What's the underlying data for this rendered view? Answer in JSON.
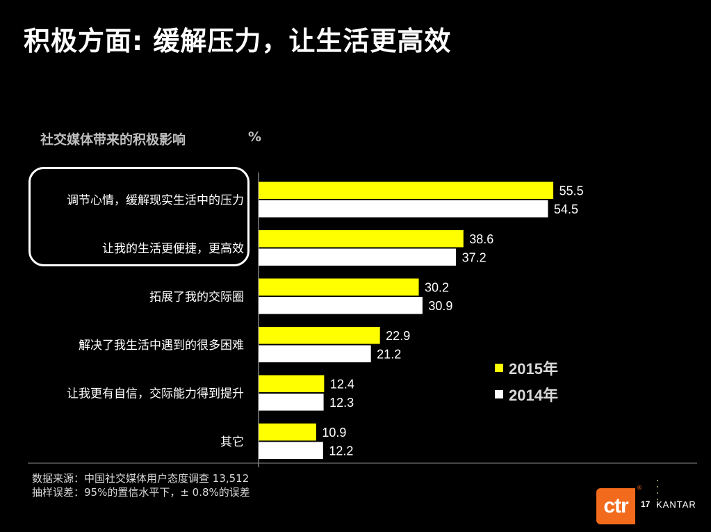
{
  "title": "积极方面: 缓解压力，让生活更高效",
  "chart_data": {
    "type": "bar",
    "orientation": "horizontal",
    "subtitle": "社交媒体带来的积极影响",
    "unit": "%",
    "categories": [
      "调节心情，缓解现实生活中的压力",
      "让我的生活更便捷，更高效",
      "拓展了我的交际圈",
      "解决了我生活中遇到的很多困难",
      "让我更有自信，交际能力得到提升",
      "其它"
    ],
    "series": [
      {
        "name": "2015年",
        "color": "#ffff00",
        "values": [
          55.5,
          38.6,
          30.2,
          22.9,
          12.4,
          10.9
        ]
      },
      {
        "name": "2014年",
        "color": "#ffffff",
        "values": [
          54.5,
          37.2,
          30.9,
          21.2,
          12.3,
          12.2
        ]
      }
    ],
    "legend_position": "right"
  },
  "notes": {
    "source": "数据来源：中国社交媒体用户态度调查 13,512",
    "error": "抽样误差：95%的置信水平下，± 0.8%的误差"
  },
  "footer": {
    "logo_text": "ctr",
    "page_number": "17",
    "brand": "KANTAR"
  }
}
